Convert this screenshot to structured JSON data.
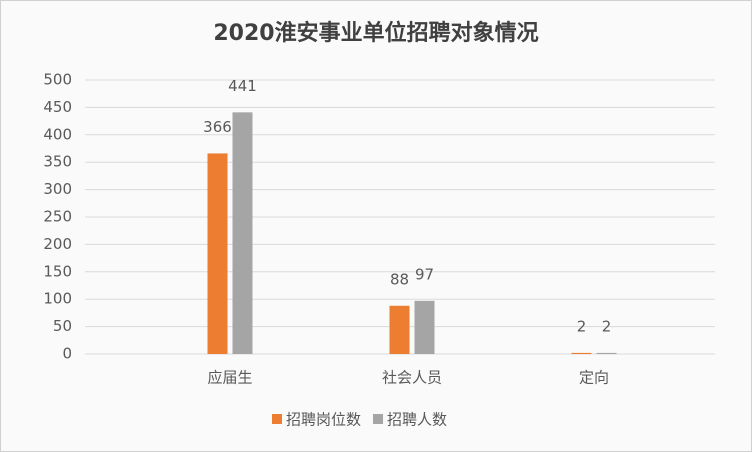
{
  "chart_data": {
    "type": "bar",
    "title": "2020淮安事业单位招聘对象情况",
    "categories": [
      "应届生",
      "社会人员",
      "定向"
    ],
    "series": [
      {
        "name": "招聘岗位数",
        "color": "#ed7d31",
        "values": [
          366,
          88,
          2
        ]
      },
      {
        "name": "招聘人数",
        "color": "#a5a5a5",
        "values": [
          441,
          97,
          2
        ]
      }
    ],
    "ylim": [
      0,
      500
    ],
    "yticks": [
      0,
      50,
      100,
      150,
      200,
      250,
      300,
      350,
      400,
      450,
      500
    ],
    "grid": true,
    "legend": "bottom"
  }
}
